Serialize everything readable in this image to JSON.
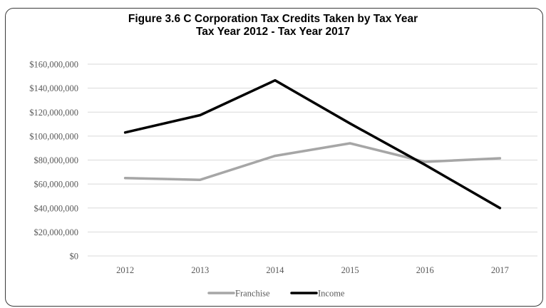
{
  "chart_data": {
    "type": "line",
    "title": "Figure 3.6  C Corporation Tax Credits Taken by Tax Year",
    "subtitle": "Tax Year 2012 - Tax Year 2017",
    "xlabel": "",
    "ylabel": "",
    "categories": [
      "2012",
      "2013",
      "2014",
      "2015",
      "2016",
      "2017"
    ],
    "series": [
      {
        "name": "Franchise",
        "color": "#a6a6a6",
        "values": [
          65000000,
          63500000,
          83500000,
          94000000,
          78500000,
          81500000
        ]
      },
      {
        "name": "Income",
        "color": "#000000",
        "values": [
          103000000,
          117500000,
          146500000,
          110500000,
          76000000,
          40000000
        ]
      }
    ],
    "ylim": [
      0,
      160000000
    ],
    "yticks": [
      0,
      20000000,
      40000000,
      60000000,
      80000000,
      100000000,
      120000000,
      140000000,
      160000000
    ],
    "ytick_labels": [
      "$0",
      "$20,000,000",
      "$40,000,000",
      "$60,000,000",
      "$80,000,000",
      "$100,000,000",
      "$120,000,000",
      "$140,000,000",
      "$160,000,000"
    ],
    "grid": true,
    "legend_position": "bottom"
  }
}
